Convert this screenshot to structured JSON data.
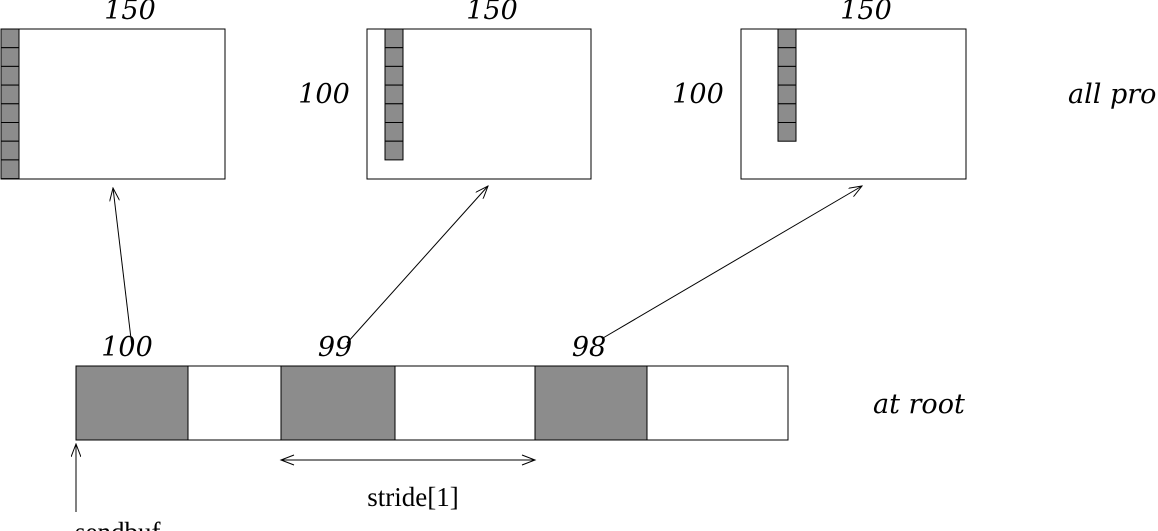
{
  "top_matrices": [
    {
      "width_label": "150",
      "height_label": "",
      "column_cells": 8
    },
    {
      "width_label": "150",
      "height_label": "100",
      "column_cells": 7
    },
    {
      "width_label": "150",
      "height_label": "100",
      "column_cells": 6
    }
  ],
  "all_processes_label": "all pro",
  "root_buffer": {
    "count_labels": [
      "100",
      "99",
      "98"
    ],
    "label": "at root",
    "stride_label": "stride[1]",
    "sendbuf_label": "sendbuf"
  },
  "colors": {
    "filled": "#8c8c8c",
    "stroke": "#000000",
    "background": "#ffffff"
  }
}
